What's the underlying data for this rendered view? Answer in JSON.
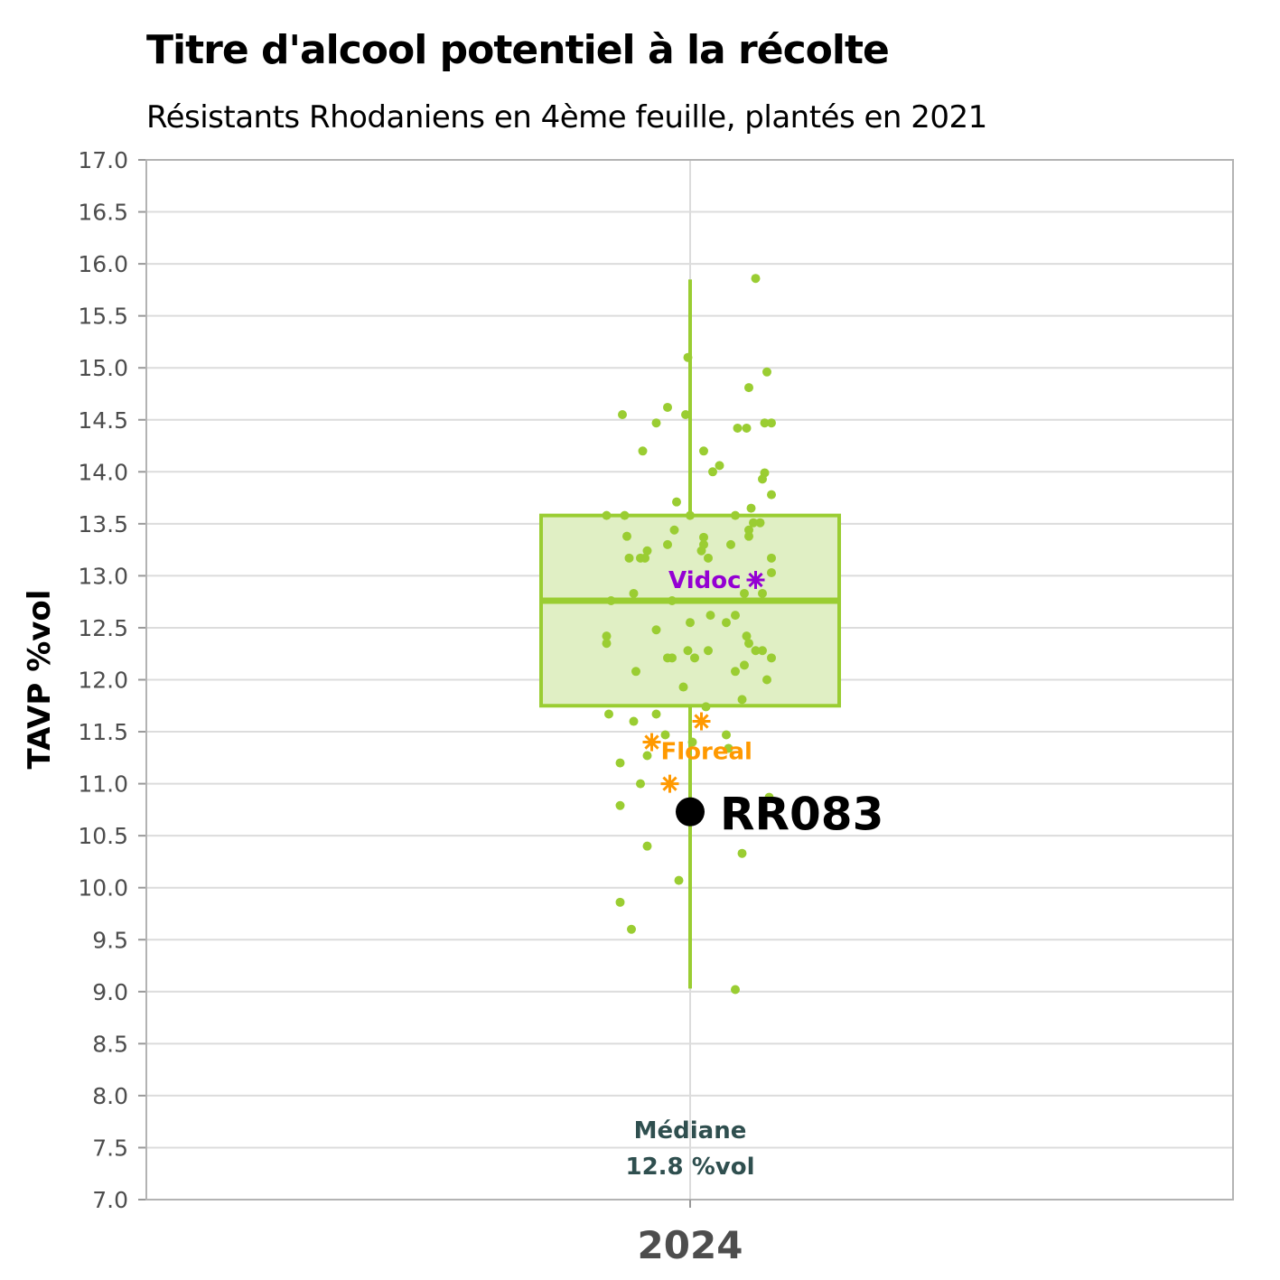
{
  "chart_data": {
    "type": "box",
    "title": "Titre d'alcool potentiel à la récolte",
    "subtitle": "Résistants Rhodaniens en 4ème feuille, plantés en 2021",
    "ylabel": "TAVP %vol",
    "xlabel": "",
    "categories": [
      "2024"
    ],
    "ylim": [
      7.0,
      17.0
    ],
    "yticks": [
      "7.0",
      "7.5",
      "8.0",
      "8.5",
      "9.0",
      "9.5",
      "10.0",
      "10.5",
      "11.0",
      "11.5",
      "12.0",
      "12.5",
      "13.0",
      "13.5",
      "14.0",
      "14.5",
      "15.0",
      "15.5",
      "16.0",
      "16.5",
      "17.0"
    ],
    "grid": true,
    "colors": {
      "box": "#9acd32",
      "box_fill": "#e0efc4",
      "points": "#9acd32",
      "highlight": "#000000",
      "vidoc": "#9400d3",
      "floreal": "#ff9900",
      "median_text": "#2f4f4f",
      "grid": "#dcdcdc",
      "axis_text": "#4d4d4d"
    },
    "box": {
      "category": "2024",
      "whisker_low": 9.03,
      "q1": 11.75,
      "median": 12.76,
      "q3": 13.58,
      "whisker_high": 15.85
    },
    "median_label": {
      "line1": "Médiane",
      "line2": "12.8 %vol"
    },
    "points": [
      {
        "x": -0.185,
        "y": 13.58
      },
      {
        "x": -0.15,
        "y": 14.55
      },
      {
        "x": -0.145,
        "y": 13.58
      },
      {
        "x": -0.105,
        "y": 14.2
      },
      {
        "x": -0.075,
        "y": 14.47
      },
      {
        "x": -0.05,
        "y": 14.62
      },
      {
        "x": -0.01,
        "y": 14.55
      },
      {
        "x": -0.005,
        "y": 15.1
      },
      {
        "x": 0.0,
        "y": 13.58
      },
      {
        "x": 0.03,
        "y": 14.2
      },
      {
        "x": 0.05,
        "y": 14.0
      },
      {
        "x": 0.065,
        "y": 14.06
      },
      {
        "x": 0.105,
        "y": 14.42
      },
      {
        "x": 0.13,
        "y": 14.81
      },
      {
        "x": 0.125,
        "y": 14.42
      },
      {
        "x": 0.145,
        "y": 15.86
      },
      {
        "x": 0.165,
        "y": 14.47
      },
      {
        "x": 0.17,
        "y": 14.96
      },
      {
        "x": 0.18,
        "y": 14.47
      },
      {
        "x": 0.165,
        "y": 13.99
      },
      {
        "x": 0.16,
        "y": 13.93
      },
      {
        "x": 0.18,
        "y": 13.78
      },
      {
        "x": 0.135,
        "y": 13.65
      },
      {
        "x": 0.14,
        "y": 13.51
      },
      {
        "x": 0.155,
        "y": 13.51
      },
      {
        "x": 0.13,
        "y": 13.44
      },
      {
        "x": 0.13,
        "y": 13.38
      },
      {
        "x": 0.18,
        "y": 13.17
      },
      {
        "x": 0.18,
        "y": 13.03
      },
      {
        "x": 0.16,
        "y": 12.83
      },
      {
        "x": 0.16,
        "y": 12.28
      },
      {
        "x": 0.18,
        "y": 12.21
      },
      {
        "x": 0.17,
        "y": 12.0
      },
      {
        "x": 0.145,
        "y": 12.28
      },
      {
        "x": 0.13,
        "y": 12.35
      },
      {
        "x": 0.125,
        "y": 12.42
      },
      {
        "x": 0.12,
        "y": 12.14
      },
      {
        "x": 0.1,
        "y": 12.08
      },
      {
        "x": 0.115,
        "y": 11.81
      },
      {
        "x": 0.1,
        "y": 12.62
      },
      {
        "x": 0.08,
        "y": 12.55
      },
      {
        "x": 0.12,
        "y": 12.83
      },
      {
        "x": 0.09,
        "y": 13.3
      },
      {
        "x": 0.1,
        "y": 13.58
      },
      {
        "x": 0.03,
        "y": 13.37
      },
      {
        "x": 0.03,
        "y": 13.3
      },
      {
        "x": 0.025,
        "y": 13.24
      },
      {
        "x": 0.04,
        "y": 13.17
      },
      {
        "x": 0.045,
        "y": 12.62
      },
      {
        "x": 0.0,
        "y": 12.55
      },
      {
        "x": 0.04,
        "y": 12.28
      },
      {
        "x": -0.005,
        "y": 12.28
      },
      {
        "x": 0.01,
        "y": 12.21
      },
      {
        "x": -0.015,
        "y": 11.93
      },
      {
        "x": -0.04,
        "y": 12.21
      },
      {
        "x": -0.05,
        "y": 12.21
      },
      {
        "x": -0.04,
        "y": 12.76
      },
      {
        "x": -0.03,
        "y": 13.71
      },
      {
        "x": -0.035,
        "y": 13.44
      },
      {
        "x": -0.05,
        "y": 13.3
      },
      {
        "x": -0.075,
        "y": 12.48
      },
      {
        "x": -0.095,
        "y": 13.24
      },
      {
        "x": -0.1,
        "y": 13.17
      },
      {
        "x": -0.11,
        "y": 13.17
      },
      {
        "x": -0.14,
        "y": 13.38
      },
      {
        "x": -0.135,
        "y": 13.17
      },
      {
        "x": -0.125,
        "y": 12.83
      },
      {
        "x": -0.175,
        "y": 12.76
      },
      {
        "x": -0.185,
        "y": 12.42
      },
      {
        "x": -0.185,
        "y": 12.35
      },
      {
        "x": -0.12,
        "y": 12.08
      },
      {
        "x": -0.18,
        "y": 11.67
      },
      {
        "x": -0.125,
        "y": 11.6
      },
      {
        "x": -0.075,
        "y": 11.67
      },
      {
        "x": -0.055,
        "y": 11.47
      },
      {
        "x": -0.095,
        "y": 11.27
      },
      {
        "x": -0.155,
        "y": 11.2
      },
      {
        "x": -0.11,
        "y": 11.0
      },
      {
        "x": -0.155,
        "y": 10.79
      },
      {
        "x": -0.095,
        "y": 10.4
      },
      {
        "x": -0.025,
        "y": 10.07
      },
      {
        "x": -0.155,
        "y": 9.86
      },
      {
        "x": -0.13,
        "y": 9.6
      },
      {
        "x": 0.115,
        "y": 10.33
      },
      {
        "x": 0.1,
        "y": 9.02
      },
      {
        "x": 0.175,
        "y": 10.87
      },
      {
        "x": 0.08,
        "y": 11.47
      },
      {
        "x": 0.085,
        "y": 11.34
      },
      {
        "x": 0.035,
        "y": 11.74
      },
      {
        "x": 0.005,
        "y": 11.4
      }
    ],
    "highlights": [
      {
        "name": "RR083",
        "y": 10.73,
        "x": 0.0,
        "marker": "dot"
      },
      {
        "name": "Vidoc",
        "y": 12.96,
        "x": 0.145,
        "marker": "star"
      },
      {
        "name": "Floreal",
        "y": 11.6,
        "x": 0.025,
        "marker": "star"
      },
      {
        "name": "",
        "y": 11.4,
        "x": -0.085,
        "marker": "star"
      },
      {
        "name": "",
        "y": 11.0,
        "x": -0.045,
        "marker": "star"
      }
    ]
  }
}
